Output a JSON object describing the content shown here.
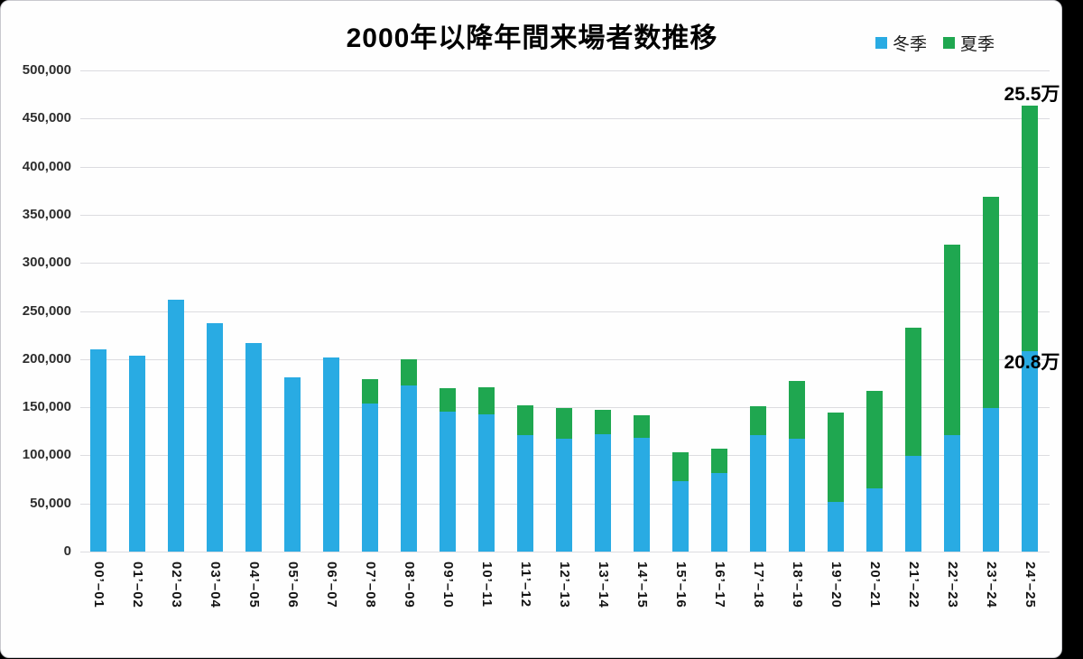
{
  "title": "2000年以降年間来場者数推移",
  "legend": [
    {
      "label": "冬季",
      "color": "#29abe3"
    },
    {
      "label": "夏季",
      "color": "#1fa750"
    }
  ],
  "chart_data": {
    "type": "bar",
    "stacked": true,
    "title": "2000年以降年間来場者数推移",
    "categories": [
      "00’–01",
      "01’–02",
      "02’–03",
      "03’–04",
      "04’–05",
      "05’–06",
      "06’–07",
      "07’–08",
      "08’–09",
      "09’–10",
      "10’–11",
      "11’–12",
      "12’–13",
      "13’–14",
      "14’–15",
      "15’–16",
      "16’–17",
      "17’–18",
      "18’–19",
      "19’–20",
      "20’–21",
      "21’–22",
      "22’–23",
      "23’–24",
      "24’–25"
    ],
    "series": [
      {
        "name": "冬季",
        "color": "#29abe3",
        "values": [
          210000,
          204000,
          262000,
          237000,
          217000,
          181000,
          202000,
          154000,
          173000,
          145000,
          143000,
          121000,
          117000,
          122000,
          118000,
          73000,
          82000,
          121000,
          117000,
          52000,
          66000,
          99000,
          121000,
          149000,
          208000
        ]
      },
      {
        "name": "夏季",
        "color": "#1fa750",
        "values": [
          0,
          0,
          0,
          0,
          0,
          0,
          0,
          25000,
          27000,
          25000,
          28000,
          31000,
          32000,
          25000,
          24000,
          30000,
          25000,
          30000,
          60000,
          92000,
          101000,
          134000,
          198000,
          220000,
          255000
        ]
      }
    ],
    "xlabel": "",
    "ylabel": "",
    "ylim": [
      0,
      500000
    ],
    "ytick_interval": 50000,
    "ytick_labels": [
      "0",
      "50,000",
      "100,000",
      "150,000",
      "200,000",
      "250,000",
      "300,000",
      "350,000",
      "400,000",
      "450,000",
      "500,000"
    ],
    "grid": true,
    "legend_position": "top-right",
    "annotations": [
      {
        "text": "25.5万",
        "series": "夏季",
        "category": "24’–25",
        "value": 255000
      },
      {
        "text": "20.8万",
        "series": "冬季",
        "category": "24’–25",
        "value": 208000
      }
    ]
  }
}
